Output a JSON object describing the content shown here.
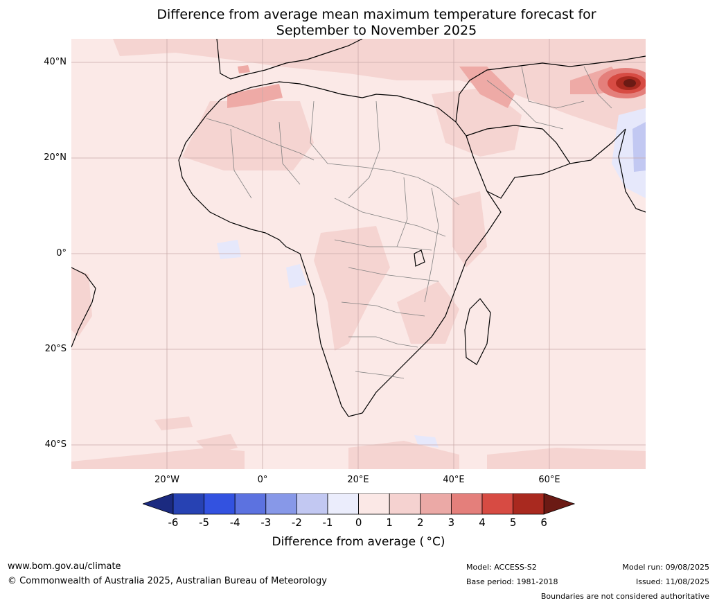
{
  "title": {
    "line1": "Difference from average mean maximum temperature forecast for",
    "line2": "September to November 2025"
  },
  "map": {
    "region": "Africa",
    "lat_labels": [
      "40°N",
      "20°N",
      "0°",
      "20°S",
      "40°S"
    ],
    "lon_labels": [
      "20°W",
      "0°",
      "20°E",
      "40°E",
      "60°E"
    ],
    "background_anomaly": "0 to 1",
    "notable_features": [
      "strong positive anomaly over Afghanistan / Pakistan border",
      "slight negative anomaly over Arabian Sea west of India"
    ]
  },
  "colorbar": {
    "title": "Difference from average ( °C)",
    "ticks": [
      "-6",
      "-5",
      "-4",
      "-3",
      "-2",
      "-1",
      "0",
      "1",
      "2",
      "3",
      "4",
      "5",
      "6"
    ],
    "colors": [
      "#1b2a80",
      "#2742b3",
      "#3352e0",
      "#5c72e0",
      "#8798e8",
      "#c2c8f2",
      "#ebedfc",
      "#fbe8e6",
      "#f5d2d0",
      "#eba9a6",
      "#e47f7b",
      "#d74b43",
      "#a9291f",
      "#6b1a14"
    ]
  },
  "footer": {
    "url": "www.bom.gov.au/climate",
    "copyright": "© Commonwealth of Australia 2025, Australian Bureau of Meteorology",
    "model": "Model: ACCESS-S2",
    "base_period": "Base period: 1981-2018",
    "model_run": "Model run: 09/08/2025",
    "issued": "Issued: 11/08/2025",
    "disclaimer": "Boundaries are not considered authoritative"
  }
}
